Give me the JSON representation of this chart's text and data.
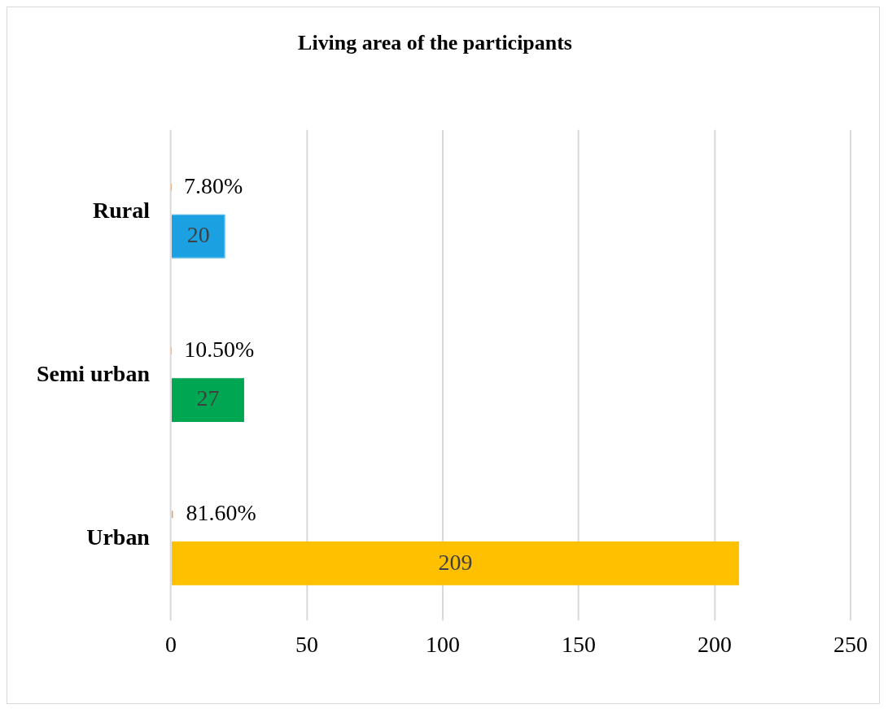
{
  "chart_data": {
    "type": "bar",
    "orientation": "horizontal",
    "title": "Living area of the participants",
    "categories": [
      "Rural",
      "Semi urban",
      "Urban"
    ],
    "series": [
      {
        "color": "#ed7d31",
        "values": [
          0.078,
          0.105,
          0.816
        ],
        "value_labels": [
          "7.80%",
          "10.50%",
          "81.60%"
        ]
      },
      {
        "colors": [
          "#1ba1e2",
          "#00a651",
          "#ffc000"
        ],
        "values": [
          20,
          27,
          209
        ],
        "value_labels": [
          "20",
          "27",
          "209"
        ]
      }
    ],
    "xlim": [
      0,
      250
    ],
    "xticks": [
      0,
      50,
      100,
      150,
      200,
      250
    ],
    "grid": "x",
    "legend": false
  }
}
